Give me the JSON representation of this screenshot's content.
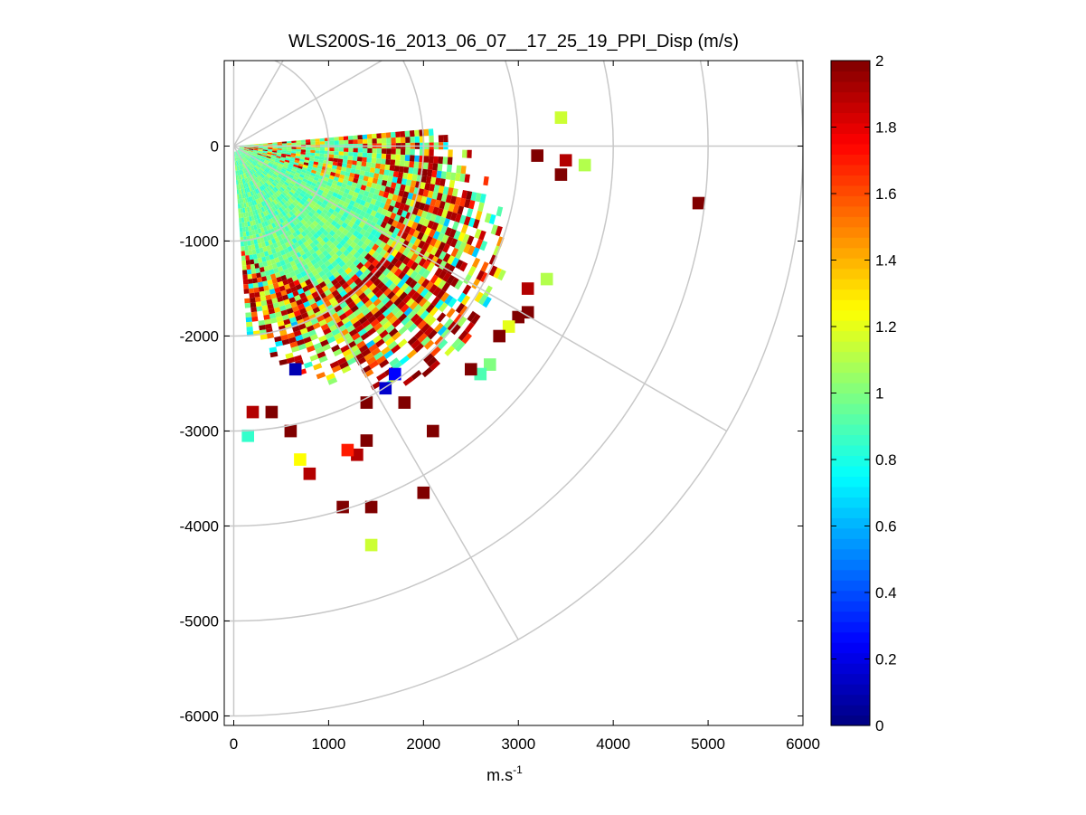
{
  "chart_data": {
    "type": "heatmap",
    "subtype": "polar-ppi",
    "title": "WLS200S-16_2013_06_07__17_25_19_PPI_Disp (m/s)",
    "xlabel": "m.s",
    "xlabel_sup": "-1",
    "ylabel": "",
    "xlim": [
      -100,
      6000
    ],
    "ylim": [
      -6100,
      900
    ],
    "x_ticks": [
      0,
      1000,
      2000,
      3000,
      4000,
      5000,
      6000
    ],
    "x_tick_labels": [
      "0",
      "1000",
      "2000",
      "3000",
      "4000",
      "5000",
      "6000"
    ],
    "y_ticks": [
      0,
      -1000,
      -2000,
      -3000,
      -4000,
      -5000,
      -6000
    ],
    "y_tick_labels": [
      "0",
      "-1000",
      "-2000",
      "-3000",
      "-4000",
      "-5000",
      "-6000"
    ],
    "polar_grid": {
      "origin": [
        0,
        0
      ],
      "ring_radii": [
        1000,
        2000,
        3000,
        4000,
        5000,
        6000
      ],
      "spoke_angles_deg": [
        90,
        60,
        30,
        0,
        -30,
        -60,
        -90
      ],
      "color": "#c8c8c8"
    },
    "sector": {
      "start_azimuth_deg": 5,
      "end_azimuth_deg": -86,
      "dense_range_max": 2300,
      "max_range": 5000
    },
    "colorbar": {
      "colormap": "jet",
      "min": 0,
      "max": 2,
      "ticks": [
        0,
        0.2,
        0.4,
        0.6,
        0.8,
        1,
        1.2,
        1.4,
        1.6,
        1.8,
        2
      ],
      "tick_labels": [
        "0",
        "0.2",
        "0.4",
        "0.6",
        "0.8",
        "1",
        "1.2",
        "1.4",
        "1.6",
        "1.8",
        "2"
      ]
    },
    "sparse_cells": [
      {
        "x": 4900,
        "y": -600,
        "value": 2.0
      },
      {
        "x": 3450,
        "y": 300,
        "value": 1.15
      },
      {
        "x": 3700,
        "y": -200,
        "value": 1.1
      },
      {
        "x": 3200,
        "y": -100,
        "value": 2.0
      },
      {
        "x": 3500,
        "y": -150,
        "value": 1.9
      },
      {
        "x": 3450,
        "y": -300,
        "value": 2.0
      },
      {
        "x": 3100,
        "y": -1500,
        "value": 1.9
      },
      {
        "x": 3000,
        "y": -1800,
        "value": 2.0
      },
      {
        "x": 3100,
        "y": -1750,
        "value": 2.0
      },
      {
        "x": 3300,
        "y": -1400,
        "value": 1.1
      },
      {
        "x": 2900,
        "y": -1900,
        "value": 1.2
      },
      {
        "x": 2800,
        "y": -2000,
        "value": 2.0
      },
      {
        "x": 2700,
        "y": -2300,
        "value": 1.0
      },
      {
        "x": 2600,
        "y": -2400,
        "value": 0.9
      },
      {
        "x": 2500,
        "y": -2350,
        "value": 2.0
      },
      {
        "x": 1700,
        "y": -2400,
        "value": 0.25
      },
      {
        "x": 1600,
        "y": -2550,
        "value": 0.15
      },
      {
        "x": 2100,
        "y": -3000,
        "value": 2.0
      },
      {
        "x": 1800,
        "y": -2700,
        "value": 2.0
      },
      {
        "x": 1400,
        "y": -2700,
        "value": 2.0
      },
      {
        "x": 2000,
        "y": -3650,
        "value": 2.0
      },
      {
        "x": 1150,
        "y": -3800,
        "value": 2.0
      },
      {
        "x": 1450,
        "y": -3800,
        "value": 2.0
      },
      {
        "x": 1450,
        "y": -4200,
        "value": 1.15
      },
      {
        "x": 1300,
        "y": -3250,
        "value": 1.9
      },
      {
        "x": 1400,
        "y": -3100,
        "value": 2.0
      },
      {
        "x": 1200,
        "y": -3200,
        "value": 1.7
      },
      {
        "x": 800,
        "y": -3450,
        "value": 1.9
      },
      {
        "x": 700,
        "y": -3300,
        "value": 1.25
      },
      {
        "x": 600,
        "y": -3000,
        "value": 2.0
      },
      {
        "x": 400,
        "y": -2800,
        "value": 2.0
      },
      {
        "x": 200,
        "y": -2800,
        "value": 1.9
      },
      {
        "x": 150,
        "y": -3050,
        "value": 0.85
      },
      {
        "x": 650,
        "y": -2350,
        "value": 0.1
      }
    ]
  }
}
